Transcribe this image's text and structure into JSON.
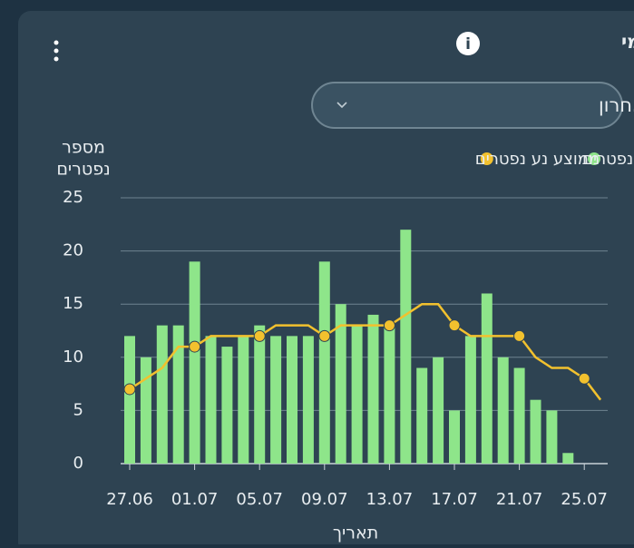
{
  "header": {
    "title": "נפטרים - יומי",
    "dropdown": "חודש אחרון"
  },
  "chart_data": {
    "type": "bar",
    "categories": [
      "27.06",
      null,
      null,
      null,
      "01.07",
      null,
      null,
      null,
      "05.07",
      null,
      null,
      null,
      "09.07",
      null,
      null,
      null,
      "13.07",
      null,
      null,
      null,
      "17.07",
      null,
      null,
      null,
      "21.07",
      null,
      null,
      null,
      "25.07",
      null
    ],
    "series": [
      {
        "name": "נפטרים",
        "color": "#8ee58a",
        "type": "bar",
        "values": [
          12,
          10,
          13,
          13,
          19,
          12,
          11,
          12,
          13,
          12,
          12,
          12,
          19,
          15,
          13,
          14,
          13,
          22,
          9,
          10,
          5,
          12,
          16,
          10,
          9,
          6,
          5,
          1,
          null,
          null
        ]
      },
      {
        "name": "ממוצע נע נפטרים",
        "color": "#f2c12e",
        "type": "line",
        "values": [
          7,
          8,
          9,
          11,
          11,
          12,
          12,
          12,
          12,
          13,
          13,
          13,
          12,
          13,
          13,
          13,
          13,
          14,
          15,
          15,
          13,
          12,
          12,
          12,
          12,
          10,
          9,
          9,
          8,
          6
        ]
      }
    ],
    "y_label": [
      "מספר",
      "נפטרים"
    ],
    "x_label": "תאריך",
    "ylim": [
      0,
      25
    ],
    "yticks": [
      0,
      5,
      10,
      15,
      20,
      25
    ],
    "grid": true,
    "legend": "top-right"
  }
}
